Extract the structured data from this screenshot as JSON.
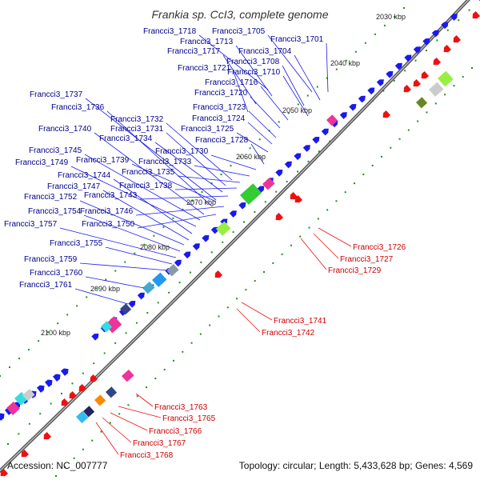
{
  "title": "Frankia sp. CcI3, complete genome",
  "footer": {
    "accession": "Accession: NC_007777",
    "topology": "Topology: circular; Length: 5,433,628 bp; Genes: 4,569"
  },
  "colors": {
    "backbone": "#777777",
    "forward_gene": "#1a1aee",
    "reverse_gene": "#ee1111",
    "forward_label": "#00008b",
    "reverse_label": "#cc0000",
    "tick_marks": "#1f8f1f"
  },
  "kbp_ticks": [
    "2030 kbp",
    "2040 kbp",
    "2050 kbp",
    "2060 kbp",
    "2070 kbp",
    "2080 kbp",
    "2090 kbp",
    "2100 kbp"
  ],
  "forward_labels": [
    "Francci3_1718",
    "Francci3_1705",
    "Francci3_1713",
    "Francci3_1701",
    "Francci3_1717",
    "Francci3_1704",
    "Francci3_1708",
    "Francci3_1721",
    "Francci3_1710",
    "Francci3_1716",
    "Francci3_1737",
    "Francci3_1720",
    "Francci3_1736",
    "Francci3_1723",
    "Francci3_1732",
    "Francci3_1724",
    "Francci3_1740",
    "Francci3_1731",
    "Francci3_1725",
    "Francci3_1734",
    "Francci3_1728",
    "Francci3_1745",
    "Francci3_1730",
    "Francci3_1749",
    "Francci3_1739",
    "Francci3_1733",
    "Francci3_1744",
    "Francci3_1735",
    "Francci3_1747",
    "Francci3_1738",
    "Francci3_1752",
    "Francci3_1743",
    "Francci3_1754",
    "Francci3_1746",
    "Francci3_1757",
    "Francci3_1750",
    "Francci3_1755",
    "Francci3_1759",
    "Francci3_1760",
    "Francci3_1761"
  ],
  "reverse_labels": [
    "Francci3_1726",
    "Francci3_1727",
    "Francci3_1729",
    "Francci3_1741",
    "Francci3_1742",
    "Francci3_1763",
    "Francci3_1765",
    "Francci3_1766",
    "Francci3_1767",
    "Francci3_1768"
  ]
}
